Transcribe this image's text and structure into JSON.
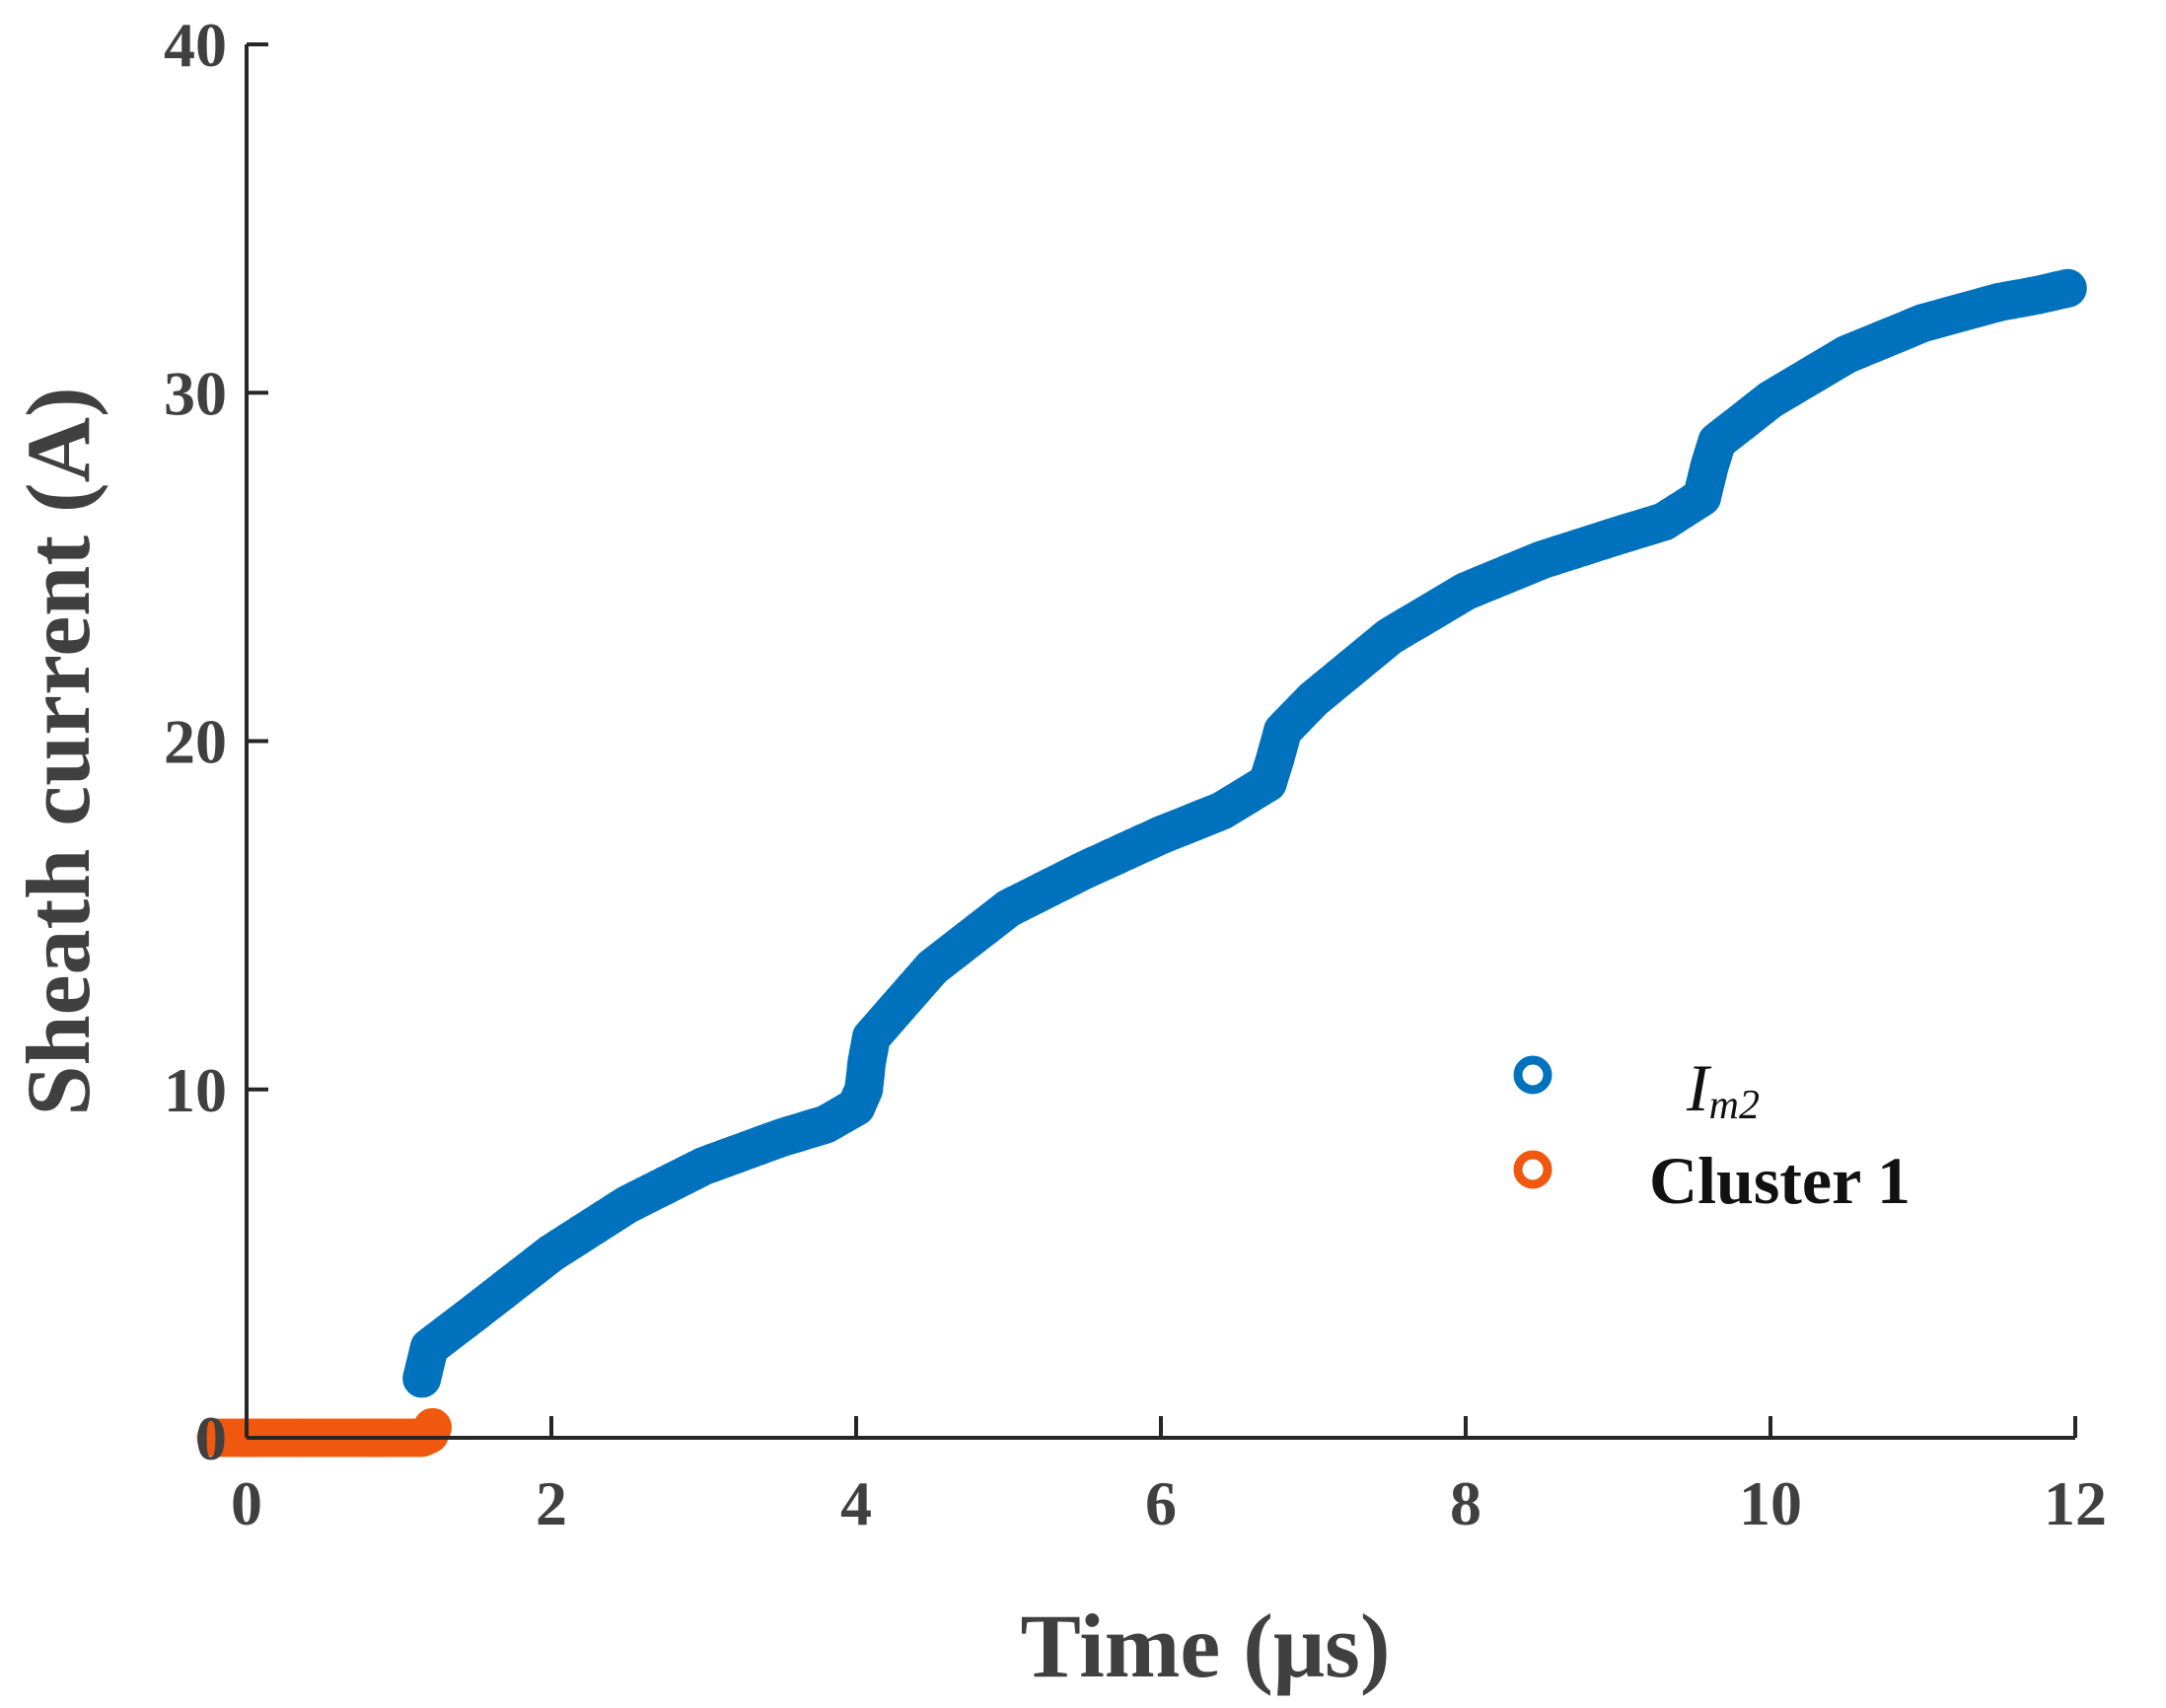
{
  "chart_data": {
    "type": "scatter",
    "title": "",
    "xlabel": "Time (μs)",
    "ylabel": "Sheath current (A)",
    "xlim": [
      0,
      12
    ],
    "ylim": [
      0,
      40
    ],
    "xticks": [
      0,
      2,
      4,
      6,
      8,
      10,
      12
    ],
    "yticks": [
      0,
      10,
      20,
      30,
      40
    ],
    "grid": false,
    "legend_position": "center-right",
    "colors": {
      "im2": "#0072BD",
      "cluster1": "#F0580F"
    },
    "series": [
      {
        "name": "I",
        "name_subscript": "m2",
        "marker": "open-circle",
        "points": [
          [
            1.15,
            1.7
          ],
          [
            1.2,
            2.6
          ],
          [
            1.5,
            3.6
          ],
          [
            2.0,
            5.3
          ],
          [
            2.5,
            6.7
          ],
          [
            3.0,
            7.8
          ],
          [
            3.5,
            8.6
          ],
          [
            3.8,
            9.0
          ],
          [
            4.0,
            9.5
          ],
          [
            4.05,
            10.0
          ],
          [
            4.07,
            10.8
          ],
          [
            4.1,
            11.5
          ],
          [
            4.5,
            13.5
          ],
          [
            5.0,
            15.2
          ],
          [
            5.5,
            16.3
          ],
          [
            6.0,
            17.3
          ],
          [
            6.4,
            18.0
          ],
          [
            6.7,
            18.8
          ],
          [
            6.75,
            19.5
          ],
          [
            6.8,
            20.3
          ],
          [
            7.0,
            21.2
          ],
          [
            7.5,
            23.0
          ],
          [
            8.0,
            24.3
          ],
          [
            8.5,
            25.2
          ],
          [
            9.0,
            25.9
          ],
          [
            9.3,
            26.3
          ],
          [
            9.55,
            27.0
          ],
          [
            9.6,
            27.9
          ],
          [
            9.65,
            28.6
          ],
          [
            10.0,
            29.8
          ],
          [
            10.5,
            31.1
          ],
          [
            11.0,
            32.0
          ],
          [
            11.5,
            32.6
          ],
          [
            11.75,
            32.8
          ],
          [
            11.95,
            33.0
          ]
        ]
      },
      {
        "name": "Cluster 1",
        "marker": "open-circle",
        "points": [
          [
            -0.2,
            0.0
          ],
          [
            0.0,
            0.0
          ],
          [
            0.2,
            0.0
          ],
          [
            0.4,
            0.0
          ],
          [
            0.6,
            0.0
          ],
          [
            0.8,
            0.0
          ],
          [
            1.0,
            0.0
          ],
          [
            1.15,
            0.0
          ],
          [
            1.2,
            0.1
          ],
          [
            1.22,
            0.3
          ]
        ]
      }
    ]
  }
}
